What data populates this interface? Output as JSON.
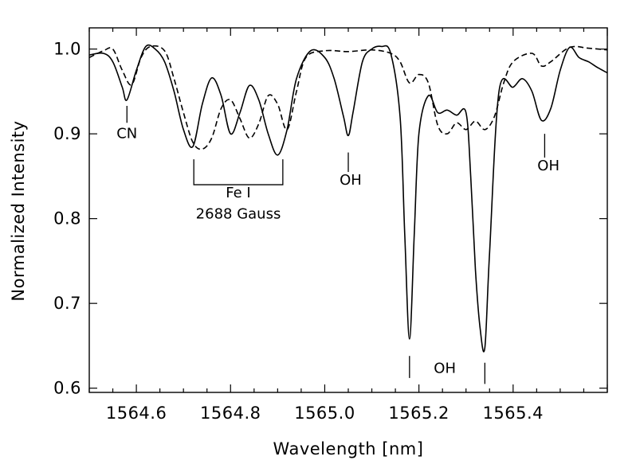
{
  "chart_data": {
    "type": "line",
    "title": "",
    "xlabel": "Wavelength [nm]",
    "ylabel": "Normalized Intensity",
    "xlim": [
      1564.5,
      1565.6
    ],
    "ylim": [
      0.595,
      1.025
    ],
    "xticks": [
      {
        "value": 1564.6,
        "label": "1564.6"
      },
      {
        "value": 1564.8,
        "label": "1564.8"
      },
      {
        "value": 1565.0,
        "label": "1565.0"
      },
      {
        "value": 1565.2,
        "label": "1565.2"
      },
      {
        "value": 1565.4,
        "label": "1565.4"
      }
    ],
    "yticks": [
      {
        "value": 0.6,
        "label": "0.6"
      },
      {
        "value": 0.7,
        "label": "0.7"
      },
      {
        "value": 0.8,
        "label": "0.8"
      },
      {
        "value": 0.9,
        "label": "0.9"
      },
      {
        "value": 1.0,
        "label": "1.0"
      }
    ],
    "legend": "none",
    "series": [
      {
        "style": "solid",
        "x": [
          1564.5,
          1564.53,
          1564.55,
          1564.57,
          1564.58,
          1564.6,
          1564.62,
          1564.64,
          1564.66,
          1564.68,
          1564.7,
          1564.72,
          1564.74,
          1564.76,
          1564.78,
          1564.8,
          1564.82,
          1564.84,
          1564.86,
          1564.88,
          1564.9,
          1564.92,
          1564.94,
          1564.97,
          1565.0,
          1565.02,
          1565.04,
          1565.05,
          1565.06,
          1565.08,
          1565.1,
          1565.12,
          1565.14,
          1565.16,
          1565.17,
          1565.18,
          1565.19,
          1565.2,
          1565.22,
          1565.24,
          1565.26,
          1565.28,
          1565.3,
          1565.31,
          1565.32,
          1565.33,
          1565.34,
          1565.35,
          1565.37,
          1565.4,
          1565.42,
          1565.44,
          1565.46,
          1565.48,
          1565.5,
          1565.52,
          1565.54,
          1565.56,
          1565.58,
          1565.6
        ],
        "y": [
          0.993,
          0.995,
          0.985,
          0.955,
          0.94,
          0.975,
          1.003,
          1.0,
          0.985,
          0.95,
          0.905,
          0.885,
          0.935,
          0.966,
          0.945,
          0.9,
          0.925,
          0.957,
          0.94,
          0.9,
          0.875,
          0.905,
          0.965,
          0.998,
          0.99,
          0.965,
          0.92,
          0.898,
          0.925,
          0.985,
          1.0,
          1.003,
          0.995,
          0.92,
          0.78,
          0.658,
          0.78,
          0.9,
          0.945,
          0.925,
          0.928,
          0.922,
          0.925,
          0.85,
          0.74,
          0.67,
          0.648,
          0.76,
          0.95,
          0.955,
          0.965,
          0.95,
          0.916,
          0.93,
          0.975,
          1.002,
          0.99,
          0.985,
          0.978,
          0.972
        ]
      },
      {
        "style": "dashed",
        "x": [
          1564.5,
          1564.53,
          1564.55,
          1564.57,
          1564.59,
          1564.61,
          1564.63,
          1564.66,
          1564.68,
          1564.7,
          1564.72,
          1564.74,
          1564.76,
          1564.78,
          1564.8,
          1564.82,
          1564.84,
          1564.86,
          1564.88,
          1564.9,
          1564.92,
          1564.94,
          1564.96,
          1565.0,
          1565.05,
          1565.1,
          1565.14,
          1565.16,
          1565.18,
          1565.2,
          1565.22,
          1565.24,
          1565.26,
          1565.28,
          1565.3,
          1565.32,
          1565.34,
          1565.36,
          1565.38,
          1565.4,
          1565.44,
          1565.46,
          1565.48,
          1565.52,
          1565.56,
          1565.6
        ],
        "y": [
          0.99,
          0.998,
          1.0,
          0.975,
          0.958,
          0.99,
          1.003,
          0.998,
          0.965,
          0.925,
          0.89,
          0.882,
          0.895,
          0.93,
          0.94,
          0.918,
          0.895,
          0.912,
          0.945,
          0.935,
          0.905,
          0.95,
          0.99,
          0.998,
          0.997,
          0.999,
          0.995,
          0.985,
          0.96,
          0.97,
          0.96,
          0.91,
          0.9,
          0.913,
          0.905,
          0.915,
          0.905,
          0.92,
          0.96,
          0.985,
          0.995,
          0.98,
          0.985,
          1.002,
          1.001,
          0.999
        ]
      }
    ],
    "annotations": [
      {
        "text": "CN",
        "x": 1564.58,
        "y": 0.895,
        "tick_x": 1564.58,
        "tick_y": [
          0.913,
          0.933
        ]
      },
      {
        "text": "OH",
        "x": 1565.055,
        "y": 0.84,
        "tick_x": 1565.05,
        "tick_y": [
          0.855,
          0.878
        ]
      },
      {
        "text": "OH",
        "x": 1565.255,
        "y": 0.618,
        "tick_x": 1565.18,
        "tick_y": [
          0.612,
          0.638
        ]
      },
      {
        "text": "",
        "x": 0,
        "y": 0,
        "tick_x": 1565.34,
        "tick_y": [
          0.605,
          0.63
        ]
      },
      {
        "text": "OH",
        "x": 1565.475,
        "y": 0.857,
        "tick_x": 1565.467,
        "tick_y": [
          0.872,
          0.9
        ]
      }
    ],
    "bracket": {
      "x1": 1564.722,
      "x2": 1564.911,
      "y_top": 0.87,
      "y_bottom": 0.84,
      "label_top": "Fe I",
      "label_bottom": "2688 Gauss",
      "label_top_y": 0.825,
      "label_bottom_y": 0.8
    }
  }
}
